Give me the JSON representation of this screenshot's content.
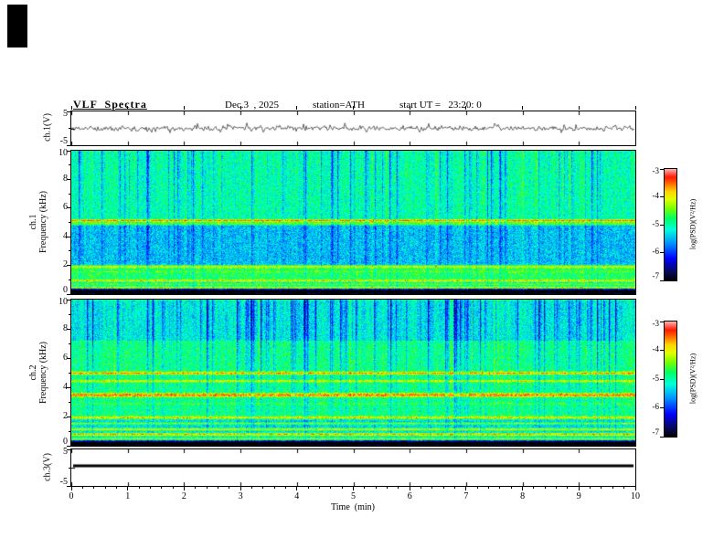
{
  "header": {
    "title": "VLF  Spectra",
    "date": "Dec.3  , 2025",
    "station": "station=ATH",
    "start_ut": "start UT =   23:20: 0"
  },
  "xaxis": {
    "label": "Time  (min)",
    "ticks": [
      0,
      1,
      2,
      3,
      4,
      5,
      6,
      7,
      8,
      9,
      10
    ],
    "range_min": [
      0,
      10
    ]
  },
  "colorbar": {
    "label": "log(PSD)(V²/Hz)",
    "ticks": [
      -3,
      -4,
      -5,
      -6,
      -7
    ],
    "range": [
      -7,
      -3
    ]
  },
  "chart_data": [
    {
      "type": "line",
      "name": "ch1_waveform",
      "ylabel": "ch.1(V)",
      "ylim": [
        -5,
        5
      ],
      "yticks": [
        5,
        -5
      ],
      "x_minutes": [
        0,
        10
      ],
      "description": "Broadband noise waveform centered on 0 V with ~±1.5 V fluctuations and sporadic spikes to ~±3 V",
      "render": {
        "seed": 11,
        "noise_amp_v": 0.9,
        "spike_prob": 0.03,
        "spike_amp_v": 2.2
      }
    },
    {
      "type": "heatmap",
      "name": "ch1_spectrogram",
      "ylabel": "ch.1 Frequency (kHz)",
      "ylabel_lines": [
        "ch.1",
        "Frequency (kHz)"
      ],
      "ylim": [
        0,
        10
      ],
      "yticks": [
        10,
        8,
        6,
        4,
        2,
        0
      ],
      "xlim_min": [
        0,
        10
      ],
      "value_range": [
        -7,
        -3
      ],
      "description": "VLF power spectrogram: green/cyan background near -5, dense blue vertical sferic streaks, red narrowband line near 5.1 kHz, yellow/dark horizontal lines below 2 kHz, black band at lowest frequencies",
      "render": {
        "seed": 22,
        "background_level": -5.0,
        "noise_sigma": 0.55,
        "bands": [
          {
            "from_khz": 2.0,
            "to_khz": 4.8,
            "delta": -0.45
          },
          {
            "from_khz": 1.0,
            "to_khz": 2.0,
            "delta": 0.25
          },
          {
            "from_khz": 0.0,
            "to_khz": 1.0,
            "delta": -0.3
          }
        ],
        "lines": [
          {
            "khz": 5.15,
            "level": -3.5,
            "halfwidth_khz": 0.06
          },
          {
            "khz": 4.95,
            "level": -4.4,
            "halfwidth_khz": 0.05
          },
          {
            "khz": 1.95,
            "level": -4.0,
            "halfwidth_khz": 0.07
          },
          {
            "khz": 1.6,
            "level": -4.5,
            "halfwidth_khz": 0.05
          },
          {
            "khz": 0.95,
            "level": -3.9,
            "halfwidth_khz": 0.06
          },
          {
            "khz": 0.72,
            "level": -4.4,
            "halfwidth_khz": 0.05
          },
          {
            "khz": 0.5,
            "level": -3.8,
            "halfwidth_khz": 0.06
          },
          {
            "khz": 0.3,
            "level": -6.6,
            "halfwidth_khz": 0.09
          },
          {
            "khz": 0.1,
            "level": -7.0,
            "halfwidth_khz": 0.12
          }
        ],
        "vertical_streaks": {
          "density": 0.1,
          "level_offset": -1.3,
          "mask_min": 0.25
        }
      }
    },
    {
      "type": "heatmap",
      "name": "ch2_spectrogram",
      "ylabel": "ch.2 Frequency (kHz)",
      "ylabel_lines": [
        "ch.2",
        "Frequency (kHz)"
      ],
      "ylim": [
        0,
        10
      ],
      "yticks": [
        10,
        8,
        6,
        4,
        2,
        0
      ],
      "xlim_min": [
        0,
        10
      ],
      "value_range": [
        -7,
        -3
      ],
      "description": "VLF power spectrogram: stronger blue patches at 8-10 kHz, bright yellow/orange lines near 3.5 and 5 kHz, layered yellow/green/black stripes below 2 kHz",
      "render": {
        "seed": 33,
        "background_level": -4.9,
        "noise_sigma": 0.55,
        "bands": [
          {
            "from_khz": 7.2,
            "to_khz": 10.0,
            "delta": -0.35
          },
          {
            "from_khz": 0.0,
            "to_khz": 2.0,
            "delta": -0.4
          }
        ],
        "lines": [
          {
            "khz": 5.0,
            "level": -3.6,
            "halfwidth_khz": 0.07
          },
          {
            "khz": 4.45,
            "level": -4.0,
            "halfwidth_khz": 0.06
          },
          {
            "khz": 3.5,
            "level": -3.4,
            "halfwidth_khz": 0.09
          },
          {
            "khz": 2.9,
            "level": -4.6,
            "halfwidth_khz": 0.05
          },
          {
            "khz": 1.95,
            "level": -3.8,
            "halfwidth_khz": 0.07
          },
          {
            "khz": 1.55,
            "level": -4.3,
            "halfwidth_khz": 0.05
          },
          {
            "khz": 1.15,
            "level": -4.0,
            "halfwidth_khz": 0.06
          },
          {
            "khz": 0.8,
            "level": -3.7,
            "halfwidth_khz": 0.07
          },
          {
            "khz": 0.5,
            "level": -4.2,
            "halfwidth_khz": 0.06
          },
          {
            "khz": 0.28,
            "level": -6.7,
            "halfwidth_khz": 0.09
          },
          {
            "khz": 0.1,
            "level": -7.0,
            "halfwidth_khz": 0.1
          }
        ],
        "vertical_streaks": {
          "density": 0.12,
          "level_offset": -1.5,
          "mask_min": 0.2
        }
      }
    },
    {
      "type": "line",
      "name": "ch3_waveform",
      "ylabel": "ch.3(V)",
      "ylim": [
        -5,
        5
      ],
      "yticks": [
        5,
        -5
      ],
      "x_minutes": [
        0,
        10
      ],
      "description": "Flat thick trace at a constant level slightly above 0 V (channel inactive/saturated)",
      "render": {
        "flat_value_v": 0.5,
        "thickness_px": 3
      }
    }
  ]
}
